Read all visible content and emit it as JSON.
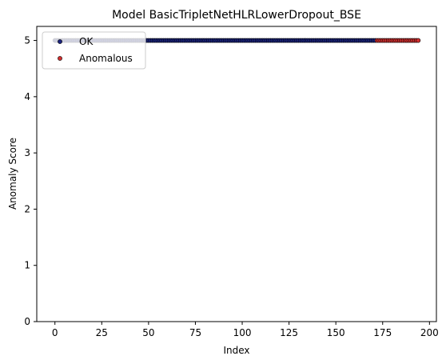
{
  "chart_data": {
    "type": "scatter",
    "title": "Model BasicTripletNetHLRLowerDropout_BSE",
    "xlabel": "Index",
    "ylabel": "Anomaly Score",
    "xlim": [
      -9.7,
      203.7
    ],
    "ylim": [
      0,
      5.25
    ],
    "xticks": [
      0,
      25,
      50,
      75,
      100,
      125,
      150,
      175,
      200
    ],
    "yticks": [
      0,
      1,
      2,
      3,
      4,
      5
    ],
    "grid": false,
    "legend_position": "top-left",
    "series": [
      {
        "name": "OK",
        "color": "#1a237e",
        "x_range": [
          0,
          171
        ],
        "y": 5
      },
      {
        "name": "Anomalous",
        "color": "#d32f2f",
        "x_range": [
          172,
          194
        ],
        "y": 5
      }
    ]
  }
}
